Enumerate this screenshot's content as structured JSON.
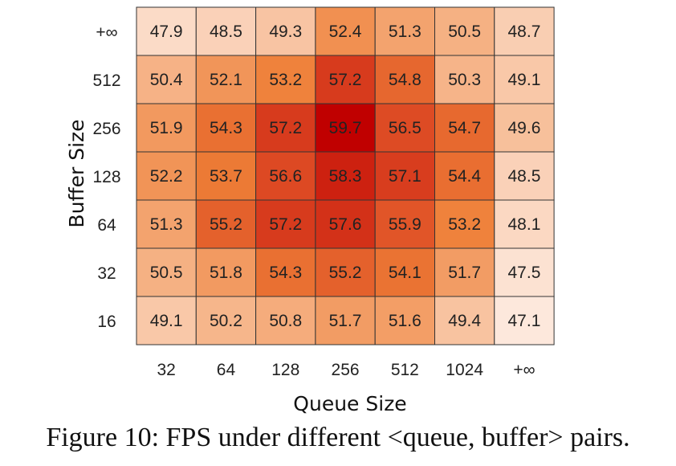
{
  "chart_data": {
    "type": "heatmap",
    "xlabel": "Queue Size",
    "ylabel": "Buffer Size",
    "x_categories": [
      "32",
      "64",
      "128",
      "256",
      "512",
      "1024",
      "+∞"
    ],
    "y_categories": [
      "+∞",
      "512",
      "256",
      "128",
      "64",
      "32",
      "16"
    ],
    "values": [
      [
        47.9,
        48.5,
        49.3,
        52.4,
        51.3,
        50.5,
        48.7
      ],
      [
        50.4,
        52.1,
        53.2,
        57.2,
        54.8,
        50.3,
        49.1
      ],
      [
        51.9,
        54.3,
        57.2,
        59.7,
        56.5,
        54.7,
        49.6
      ],
      [
        52.2,
        53.7,
        56.6,
        58.3,
        57.1,
        54.4,
        48.5
      ],
      [
        51.3,
        55.2,
        57.2,
        57.6,
        55.9,
        53.2,
        48.1
      ],
      [
        50.5,
        51.8,
        54.3,
        55.2,
        54.1,
        51.7,
        47.5
      ],
      [
        49.1,
        50.2,
        50.8,
        51.7,
        51.6,
        49.4,
        47.1
      ]
    ],
    "color_range": [
      47.1,
      59.7
    ],
    "colormap": [
      "#fde8dc",
      "#f6b58a",
      "#ee7f37",
      "#dd4a24",
      "#c00000"
    ]
  },
  "caption": "Figure 10: FPS under different <queue, buffer> pairs."
}
